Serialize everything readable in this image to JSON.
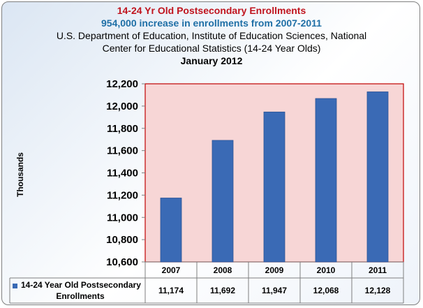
{
  "chart_data": {
    "type": "bar",
    "title": "14-24 Yr Old Postsecondary Enrollments",
    "subtitle": "954,000 increase in enrollments from 2007-2011",
    "source_line1": "U.S. Department of Education, Institute of Education Sciences, National",
    "source_line2": "Center for Educational Statistics  (14-24 Year Olds)",
    "date": "January 2012",
    "ylabel": "Thousands",
    "xlabel": "",
    "ylim": [
      10600,
      12200
    ],
    "yticks": [
      10600,
      10800,
      11000,
      11200,
      11400,
      11600,
      11800,
      12000,
      12200
    ],
    "ytick_labels": [
      "10,600",
      "10,800",
      "11,000",
      "11,200",
      "11,400",
      "11,600",
      "11,800",
      "12,000",
      "12,200"
    ],
    "categories": [
      "2007",
      "2008",
      "2009",
      "2010",
      "2011"
    ],
    "series": [
      {
        "name": "14-24 Year Old Postsecondary Enrollments",
        "legend_line1": "14-24 Year Old Postsecondary",
        "legend_line2": "Enrollments",
        "values": [
          11174,
          11692,
          11947,
          12068,
          12128
        ],
        "value_labels": [
          "11,174",
          "11,692",
          "11,947",
          "12,068",
          "12,128"
        ],
        "color": "#3a6ab5"
      }
    ],
    "grid": false,
    "data_table": true,
    "plot_background": "#f7d6d6",
    "plot_border": "#c00000"
  }
}
